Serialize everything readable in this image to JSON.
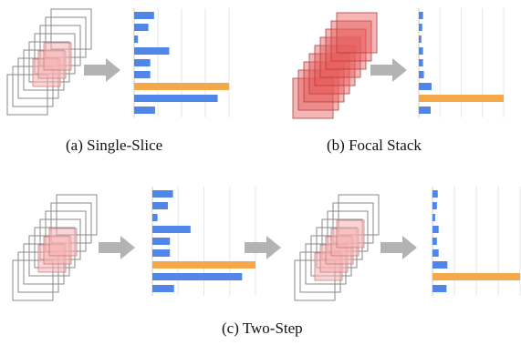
{
  "captions": {
    "a": "(a)  Single-Slice",
    "b": "(b)  Focal Stack",
    "c": "(c)  Two-Step"
  },
  "colors": {
    "bar_blue": "#4f86e8",
    "bar_orange": "#f4a84a",
    "arrow_gray": "#b3b3b3",
    "frame_gray": "#8a8a8a",
    "highlight_pink": "#f5b3b3",
    "highlight_red": "#e65a5a",
    "grid": "#e6e6e6"
  },
  "chart_data": [
    {
      "panel": "a",
      "type": "bar",
      "orientation": "horizontal",
      "values": [
        0.21,
        0.15,
        0.04,
        0.37,
        0.17,
        0.17,
        1.0,
        0.88,
        0.22
      ],
      "highlight_index": 6,
      "xlim": [
        0,
        1
      ]
    },
    {
      "panel": "b",
      "type": "bar",
      "orientation": "horizontal",
      "values": [
        0.05,
        0.04,
        0.03,
        0.05,
        0.05,
        0.06,
        0.15,
        1.0,
        0.14
      ],
      "highlight_index": 7,
      "xlim": [
        0,
        1
      ]
    },
    {
      "panel": "c-first",
      "type": "bar",
      "orientation": "horizontal",
      "values": [
        0.2,
        0.15,
        0.05,
        0.37,
        0.17,
        0.17,
        1.0,
        0.87,
        0.21
      ],
      "highlight_index": 6,
      "xlim": [
        0,
        1
      ]
    },
    {
      "panel": "c-second",
      "type": "bar",
      "orientation": "horizontal",
      "values": [
        0.06,
        0.05,
        0.03,
        0.07,
        0.05,
        0.07,
        0.17,
        1.0,
        0.16
      ],
      "highlight_index": 7,
      "xlim": [
        0,
        1
      ]
    }
  ]
}
